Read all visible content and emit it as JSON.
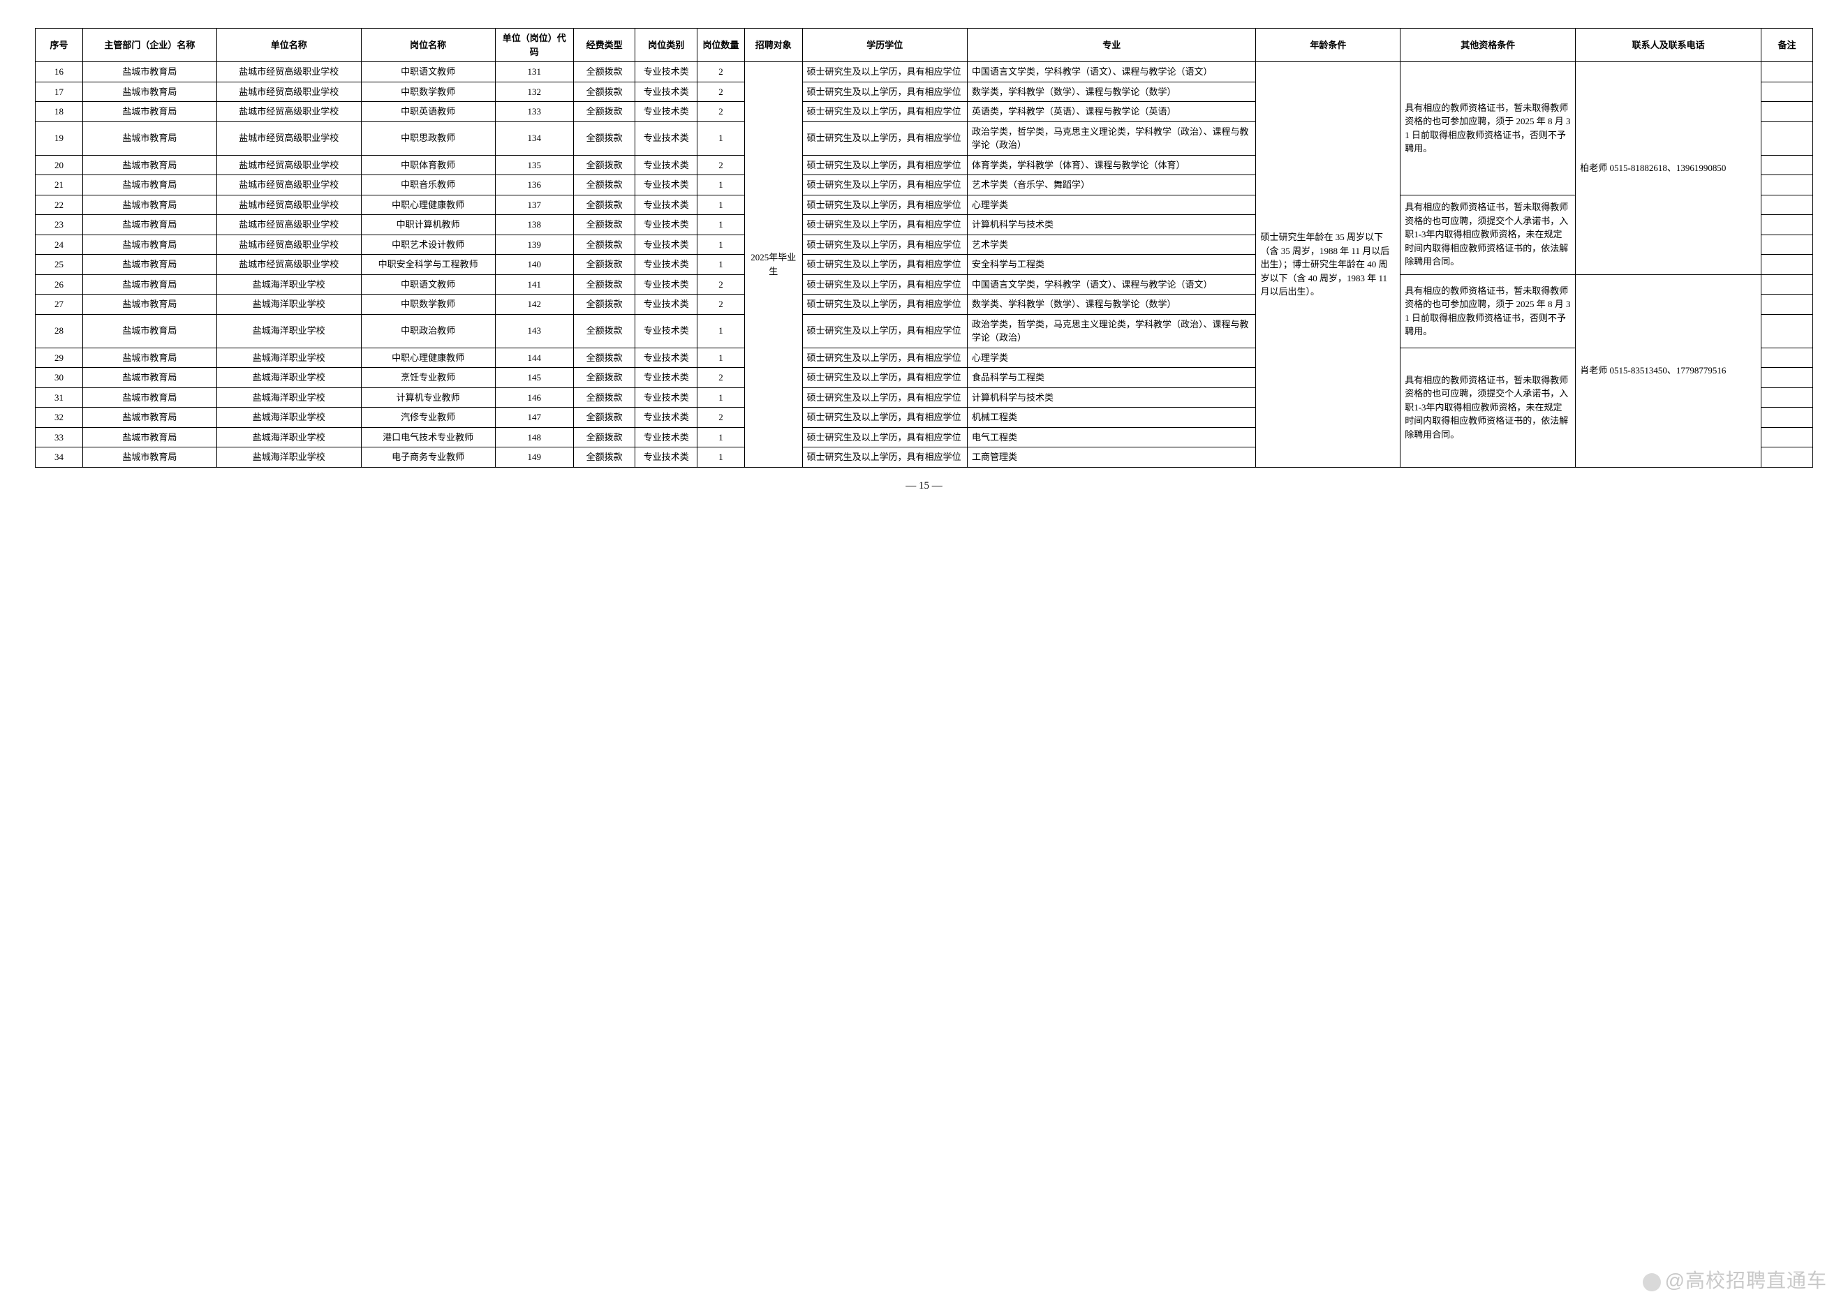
{
  "headers": {
    "idx": "序号",
    "dept": "主管部门（企业）名称",
    "unit": "单位名称",
    "pos": "岗位名称",
    "code": "单位（岗位）代码",
    "fund": "经费类型",
    "cat": "岗位类别",
    "num": "岗位数量",
    "tgt": "招聘对象",
    "edu": "学历学位",
    "major": "专业",
    "age": "年龄条件",
    "other": "其他资格条件",
    "contact": "联系人及联系电话",
    "note": "备注"
  },
  "shared": {
    "dept": "盐城市教育局",
    "fund": "全额拨款",
    "cat": "专业技术类",
    "edu": "硕士研究生及以上学历，具有相应学位",
    "target": "2025年毕业生",
    "age": "硕士研究生年龄在 35 周岁以下（含 35 周岁，1988 年 11 月以后出生）；博士研究生年龄在 40 周岁以下（含 40 周岁，1983 年 11 月以后出生）。",
    "other_a": "具有相应的教师资格证书，暂未取得教师资格的也可参加应聘，须于 2025 年 8 月 31 日前取得相应教师资格证书，否则不予聘用。",
    "other_b": "具有相应的教师资格证书，暂未取得教师资格的也可应聘，须提交个人承诺书，入职1-3年内取得相应教师资格，未在规定时间内取得相应教师资格证书的，依法解除聘用合同。",
    "other_c": "具有相应的教师资格证书，暂未取得教师资格的也可参加应聘，须于 2025 年 8 月 31 日前取得相应教师资格证书，否则不予聘用。",
    "other_d": "具有相应的教师资格证书，暂未取得教师资格的也可应聘，须提交个人承诺书，入职1-3年内取得相应教师资格，未在规定时间内取得相应教师资格证书的，依法解除聘用合同。",
    "contact1": "柏老师 0515-81882618、13961990850",
    "contact2": "肖老师 0515-83513450、17798779516"
  },
  "rows": [
    {
      "idx": "16",
      "unit": "盐城市经贸高级职业学校",
      "pos": "中职语文教师",
      "code": "131",
      "num": "2",
      "major": "中国语言文学类，学科教学（语文）、课程与教学论（语文）"
    },
    {
      "idx": "17",
      "unit": "盐城市经贸高级职业学校",
      "pos": "中职数学教师",
      "code": "132",
      "num": "2",
      "major": "数学类，学科教学（数学）、课程与教学论（数学）"
    },
    {
      "idx": "18",
      "unit": "盐城市经贸高级职业学校",
      "pos": "中职英语教师",
      "code": "133",
      "num": "2",
      "major": "英语类，学科教学（英语）、课程与教学论（英语）"
    },
    {
      "idx": "19",
      "unit": "盐城市经贸高级职业学校",
      "pos": "中职思政教师",
      "code": "134",
      "num": "1",
      "major": "政治学类，哲学类，马克思主义理论类，学科教学（政治）、课程与教学论（政治）"
    },
    {
      "idx": "20",
      "unit": "盐城市经贸高级职业学校",
      "pos": "中职体育教师",
      "code": "135",
      "num": "2",
      "major": "体育学类，学科教学（体育）、课程与教学论（体育）"
    },
    {
      "idx": "21",
      "unit": "盐城市经贸高级职业学校",
      "pos": "中职音乐教师",
      "code": "136",
      "num": "1",
      "major": "艺术学类（音乐学、舞蹈学）"
    },
    {
      "idx": "22",
      "unit": "盐城市经贸高级职业学校",
      "pos": "中职心理健康教师",
      "code": "137",
      "num": "1",
      "major": "心理学类"
    },
    {
      "idx": "23",
      "unit": "盐城市经贸高级职业学校",
      "pos": "中职计算机教师",
      "code": "138",
      "num": "1",
      "major": "计算机科学与技术类"
    },
    {
      "idx": "24",
      "unit": "盐城市经贸高级职业学校",
      "pos": "中职艺术设计教师",
      "code": "139",
      "num": "1",
      "major": "艺术学类"
    },
    {
      "idx": "25",
      "unit": "盐城市经贸高级职业学校",
      "pos": "中职安全科学与工程教师",
      "code": "140",
      "num": "1",
      "major": "安全科学与工程类"
    },
    {
      "idx": "26",
      "unit": "盐城海洋职业学校",
      "pos": "中职语文教师",
      "code": "141",
      "num": "2",
      "major": "中国语言文学类，学科教学（语文）、课程与教学论（语文）"
    },
    {
      "idx": "27",
      "unit": "盐城海洋职业学校",
      "pos": "中职数学教师",
      "code": "142",
      "num": "2",
      "major": "数学类、学科教学（数学）、课程与教学论（数学）"
    },
    {
      "idx": "28",
      "unit": "盐城海洋职业学校",
      "pos": "中职政治教师",
      "code": "143",
      "num": "1",
      "major": "政治学类，哲学类，马克思主义理论类，学科教学（政治）、课程与教学论（政治）"
    },
    {
      "idx": "29",
      "unit": "盐城海洋职业学校",
      "pos": "中职心理健康教师",
      "code": "144",
      "num": "1",
      "major": "心理学类"
    },
    {
      "idx": "30",
      "unit": "盐城海洋职业学校",
      "pos": "烹饪专业教师",
      "code": "145",
      "num": "2",
      "major": "食品科学与工程类"
    },
    {
      "idx": "31",
      "unit": "盐城海洋职业学校",
      "pos": "计算机专业教师",
      "code": "146",
      "num": "1",
      "major": "计算机科学与技术类"
    },
    {
      "idx": "32",
      "unit": "盐城海洋职业学校",
      "pos": "汽修专业教师",
      "code": "147",
      "num": "2",
      "major": "机械工程类"
    },
    {
      "idx": "33",
      "unit": "盐城海洋职业学校",
      "pos": "港口电气技术专业教师",
      "code": "148",
      "num": "1",
      "major": "电气工程类"
    },
    {
      "idx": "34",
      "unit": "盐城海洋职业学校",
      "pos": "电子商务专业教师",
      "code": "149",
      "num": "1",
      "major": "工商管理类"
    }
  ],
  "page_number": "— 15 —",
  "watermark": "@高校招聘直通车"
}
